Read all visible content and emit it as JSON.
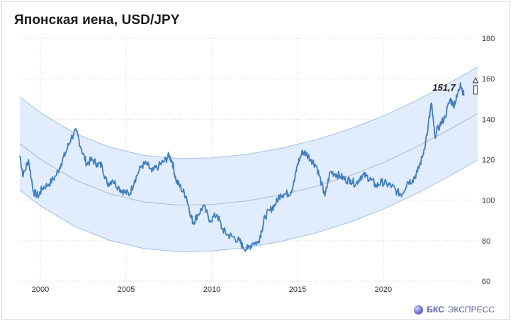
{
  "title": "Японская иена, USD/JPY",
  "brand": {
    "name_bold": "БКС",
    "name_rest": "ЭКСПРЕСС",
    "logo_icon": "sphere-logo-icon"
  },
  "colors": {
    "line": "#3f7fc0",
    "channel_fill": "#dce9fb",
    "channel_edge": "#9fc2ea",
    "trend": "#b9bfc7",
    "grid": "#d3d7dc"
  },
  "chart_data": {
    "type": "line",
    "title": "Японская иена, USD/JPY",
    "xlabel": "",
    "ylabel": "",
    "x_ticks": [
      "2000",
      "2005",
      "2010",
      "2015",
      "2020"
    ],
    "y_ticks": [
      "60",
      "80",
      "100",
      "120",
      "140",
      "160",
      "180"
    ],
    "xlim": [
      1998.8,
      2025.5
    ],
    "ylim": [
      60,
      180
    ],
    "grid": "dotted",
    "last_value_label": "151,7",
    "series": [
      {
        "x": [
          1998.8,
          1999.0,
          1999.3,
          1999.6,
          1999.9,
          2000.1,
          2000.5,
          2000.9,
          2001.2,
          2001.5,
          2001.8,
          2002.1,
          2002.4,
          2002.7,
          2003.0,
          2003.3,
          2003.6,
          2003.9,
          2004.2,
          2004.6,
          2004.9,
          2005.2,
          2005.5,
          2005.9,
          2006.2,
          2006.5,
          2006.9,
          2007.2,
          2007.5,
          2007.7,
          2007.9,
          2008.2,
          2008.5,
          2008.8,
          2008.9,
          2009.2,
          2009.5,
          2009.9,
          2010.3,
          2010.6,
          2010.9,
          2011.2,
          2011.6,
          2011.8,
          2012.1,
          2012.4,
          2012.7,
          2012.9,
          2013.1,
          2013.4,
          2013.7,
          2014.0,
          2014.3,
          2014.6,
          2014.8,
          2015.0,
          2015.3,
          2015.5,
          2015.8,
          2016.1,
          2016.4,
          2016.6,
          2016.9,
          2017.2,
          2017.5,
          2017.8,
          2018.1,
          2018.4,
          2018.7,
          2019.0,
          2019.3,
          2019.6,
          2019.9,
          2020.2,
          2020.5,
          2020.8,
          2021.1,
          2021.4,
          2021.7,
          2022.0,
          2022.3,
          2022.6,
          2022.8,
          2023.0,
          2023.3,
          2023.6,
          2023.9,
          2024.1,
          2024.3,
          2024.5,
          2024.7
        ],
        "y": [
          122,
          112,
          120,
          104,
          102,
          106,
          108,
          112,
          118,
          124,
          131,
          134,
          125,
          118,
          120,
          118,
          117,
          108,
          110,
          106,
          104,
          103,
          110,
          117,
          118,
          114,
          117,
          119,
          122,
          119,
          110,
          106,
          102,
          92,
          89,
          93,
          97,
          90,
          93,
          86,
          83,
          82,
          80,
          77,
          76,
          79,
          79,
          85,
          92,
          95,
          98,
          103,
          103,
          104,
          109,
          118,
          124,
          123,
          120,
          117,
          108,
          102,
          114,
          113,
          112,
          110,
          110,
          108,
          112,
          112,
          110,
          107,
          109,
          108,
          107,
          104,
          103,
          109,
          110,
          114,
          122,
          135,
          148,
          132,
          137,
          141,
          150,
          147,
          151,
          158,
          151.7
        ]
      }
    ],
    "trend": {
      "x": [
        1998.8,
        2000,
        2002,
        2004,
        2006,
        2008,
        2010,
        2012,
        2014,
        2016,
        2018,
        2020,
        2022,
        2024,
        2025.5
      ],
      "center": [
        128,
        120.2,
        110.1,
        103.3,
        99.2,
        97.6,
        97.9,
        99.6,
        102.6,
        106.7,
        112.0,
        118.6,
        126.5,
        135.6,
        142.8
      ],
      "upper": [
        151,
        143.2,
        133.1,
        126.3,
        122.2,
        120.6,
        120.9,
        122.6,
        125.6,
        129.7,
        135.0,
        141.6,
        149.5,
        158.6,
        165.8
      ],
      "lower": [
        105,
        97.2,
        87.1,
        80.3,
        76.2,
        74.6,
        74.9,
        76.6,
        79.6,
        83.7,
        89.0,
        95.6,
        103.5,
        112.6,
        119.8
      ]
    }
  }
}
